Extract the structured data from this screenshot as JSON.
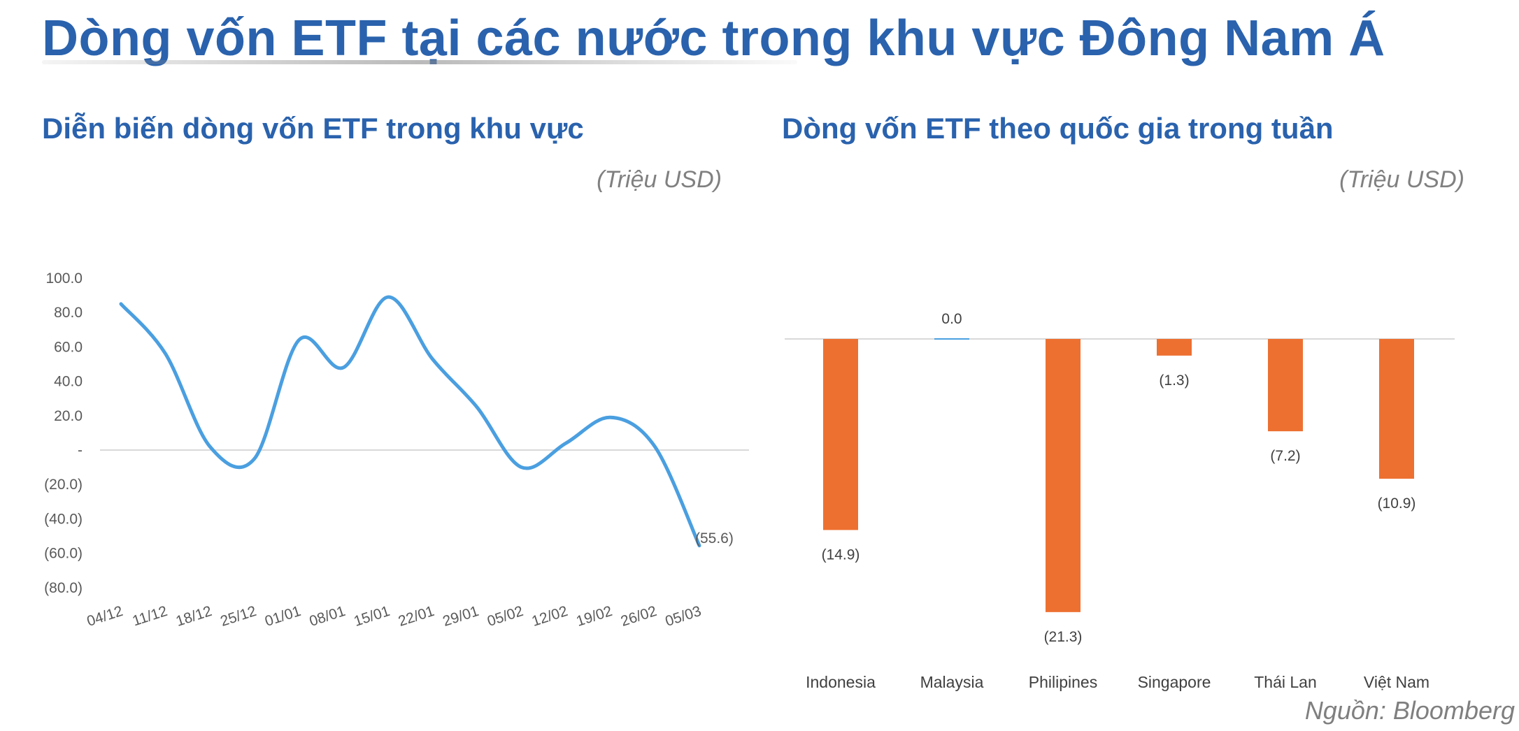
{
  "page": {
    "title": "Dòng vốn ETF tại các nước trong khu vực Đông Nam Á",
    "source": "Nguồn: Bloomberg"
  },
  "colors": {
    "title": "#2a62ad",
    "line": "#4a9fe0",
    "bar": "#ed7031",
    "axis": "#d9d9d9"
  },
  "chart_data": [
    {
      "type": "line",
      "title": "Diễn biến dòng vốn ETF trong khu vực",
      "unit": "(Triệu USD)",
      "categories": [
        "04/12",
        "11/12",
        "18/12",
        "25/12",
        "01/01",
        "08/01",
        "15/01",
        "22/01",
        "29/01",
        "05/02",
        "12/02",
        "19/02",
        "26/02",
        "05/03"
      ],
      "values": [
        85,
        56,
        2,
        -5,
        64,
        48,
        89,
        53,
        25,
        -10,
        4,
        19,
        2,
        -55.6
      ],
      "ylim": [
        -80,
        100
      ],
      "yticks": [
        100,
        80,
        60,
        40,
        20,
        0,
        -20,
        -40,
        -60,
        -80
      ],
      "ytick_labels": [
        "100.0",
        "80.0",
        "60.0",
        "40.0",
        "20.0",
        "-",
        "(20.0)",
        "(40.0)",
        "(60.0)",
        "(80.0)"
      ],
      "data_labels": [
        {
          "category": "05/03",
          "label": "(55.6)"
        }
      ],
      "smooth": true,
      "grid": false
    },
    {
      "type": "bar",
      "title": "Dòng vốn ETF theo quốc gia trong tuần",
      "unit": "(Triệu USD)",
      "categories": [
        "Indonesia",
        "Malaysia",
        "Philipines",
        "Singapore",
        "Thái Lan",
        "Việt Nam"
      ],
      "values": [
        -14.9,
        0.0,
        -21.3,
        -1.3,
        -7.2,
        -10.9
      ],
      "data_labels": [
        "(14.9)",
        "0.0",
        "(21.3)",
        "(1.3)",
        "(7.2)",
        "(10.9)"
      ],
      "grid": false
    }
  ]
}
